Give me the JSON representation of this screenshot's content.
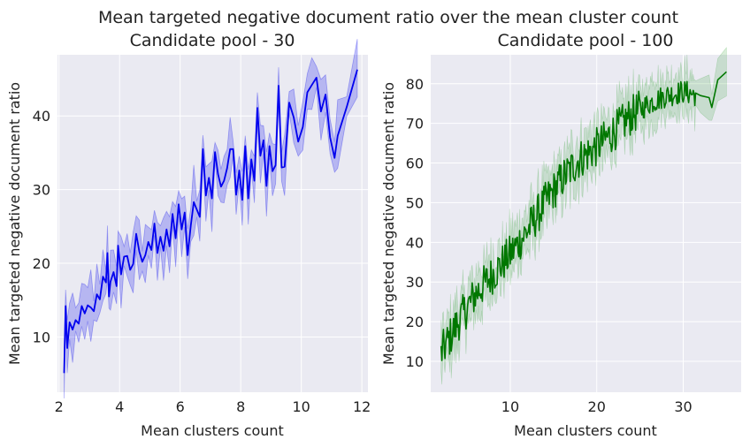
{
  "figure": {
    "suptitle": "Mean targeted negative document ratio over the mean cluster count",
    "colors": {
      "plot_bg": "#EAEAF2",
      "grid": "#FFFFFF",
      "text": "#222222"
    }
  },
  "chart_data": [
    {
      "type": "line",
      "title": "Candidate pool - 30",
      "xlabel": "Mean clusters count",
      "ylabel": "Mean targeted negative document ratio",
      "xlim": [
        1.95,
        12.2
      ],
      "ylim": [
        2.5,
        48.3
      ],
      "xticks": [
        2,
        4,
        6,
        8,
        10,
        12
      ],
      "yticks": [
        10,
        20,
        30,
        40
      ],
      "color": "#0000EE",
      "band_color": "#0000EE",
      "band_halfwidth": [
        3.5,
        2.5,
        3.5,
        2.0,
        4.5,
        1.5
      ],
      "series": [
        {
          "x": [
            2.17,
            2.22,
            2.27,
            2.35,
            2.45,
            2.55,
            2.65,
            2.75,
            2.85,
            2.95,
            3.05,
            3.15,
            3.25,
            3.35,
            3.45,
            3.55,
            3.6,
            3.65,
            3.7,
            3.8,
            3.9,
            3.95,
            4.05,
            4.15,
            4.25,
            4.35,
            4.45,
            4.55,
            4.65,
            4.75,
            4.85,
            4.95,
            5.05,
            5.15,
            5.25,
            5.35,
            5.45,
            5.55,
            5.65,
            5.75,
            5.85,
            5.95,
            6.05,
            6.15,
            6.25,
            6.35,
            6.45,
            6.55,
            6.65,
            6.75,
            6.85,
            6.95,
            7.05,
            7.15,
            7.25,
            7.35,
            7.45,
            7.55,
            7.65,
            7.75,
            7.85,
            7.95,
            8.05,
            8.15,
            8.25,
            8.35,
            8.45,
            8.55,
            8.65,
            8.75,
            8.85,
            8.95,
            9.05,
            9.15,
            9.25,
            9.35,
            9.45,
            9.6,
            9.75,
            9.9,
            10.05,
            10.2,
            10.35,
            10.5,
            10.65,
            10.8,
            10.95,
            11.1,
            11.2,
            11.5,
            11.85
          ],
          "y": [
            5.1,
            14.2,
            8.5,
            12.0,
            11.0,
            12.3,
            11.8,
            14.2,
            13.2,
            14.3,
            14.0,
            13.5,
            15.8,
            15.1,
            18.2,
            17.4,
            21.4,
            15.5,
            17.5,
            18.8,
            16.9,
            22.4,
            18.5,
            20.9,
            21.0,
            19.1,
            19.9,
            24.0,
            21.6,
            20.2,
            21.1,
            22.9,
            21.8,
            25.4,
            21.4,
            23.6,
            21.7,
            24.6,
            22.3,
            26.7,
            23.4,
            28.0,
            24.6,
            26.9,
            21.1,
            25.1,
            28.3,
            27.3,
            26.3,
            35.5,
            29.2,
            31.6,
            28.8,
            35.1,
            32.1,
            30.4,
            31.2,
            32.9,
            35.5,
            35.5,
            29.3,
            32.6,
            28.6,
            35.9,
            28.8,
            34.1,
            31.2,
            41.1,
            34.6,
            36.7,
            30.5,
            35.9,
            32.5,
            33.3,
            44.1,
            33.0,
            33.1,
            41.8,
            39.8,
            36.5,
            38.5,
            43.2,
            44.2,
            45.2,
            40.6,
            42.9,
            37.1,
            34.3,
            37.3,
            41.2,
            46.3
          ]
        }
      ]
    },
    {
      "type": "line",
      "title": "Candidate pool - 100",
      "xlabel": "Mean clusters count",
      "ylabel": "Mean targeted negative document ratio",
      "xlim": [
        0.8,
        36.7
      ],
      "ylim": [
        2.2,
        87.3
      ],
      "xticks": [
        10,
        20,
        30
      ],
      "yticks": [
        10,
        20,
        30,
        40,
        50,
        60,
        70,
        80
      ],
      "color": "#007700",
      "band_color": "#2E9E2E",
      "trend": {
        "x": [
          2,
          4,
          6,
          8,
          10,
          12,
          14,
          16,
          18,
          20,
          22,
          24,
          26,
          28,
          30,
          32,
          34,
          35
        ],
        "y": [
          12,
          20,
          27,
          32,
          37,
          43,
          50,
          56,
          61,
          64,
          68,
          72,
          75,
          77,
          78,
          77,
          81,
          83
        ]
      },
      "series": [
        {
          "x": [
            2.0,
            2.5,
            3.0,
            4.0,
            5.0,
            6.0,
            7.0,
            8.0,
            9.0,
            10.0,
            11.0,
            12.0,
            13.0,
            14.0,
            15.0,
            16.0,
            17.0,
            18.0,
            19.0,
            20.0,
            21.0,
            22.0,
            23.0,
            24.0,
            24.5,
            25.0,
            26.0,
            27.0,
            28.0,
            29.0,
            29.8,
            31.0,
            32.0,
            33.0,
            33.3,
            34.0,
            35.0
          ],
          "y": [
            16.0,
            9.0,
            14.0,
            20.0,
            27.0,
            30.0,
            32.0,
            34.0,
            35.0,
            37.0,
            40.0,
            44.0,
            47.0,
            51.0,
            55.0,
            57.0,
            60.0,
            62.0,
            63.0,
            65.0,
            67.0,
            69.0,
            71.0,
            73.0,
            81.5,
            74.0,
            75.0,
            76.0,
            77.0,
            78.0,
            80.0,
            77.0,
            77.0,
            76.5,
            74.0,
            81.0,
            83.0
          ]
        }
      ]
    }
  ]
}
